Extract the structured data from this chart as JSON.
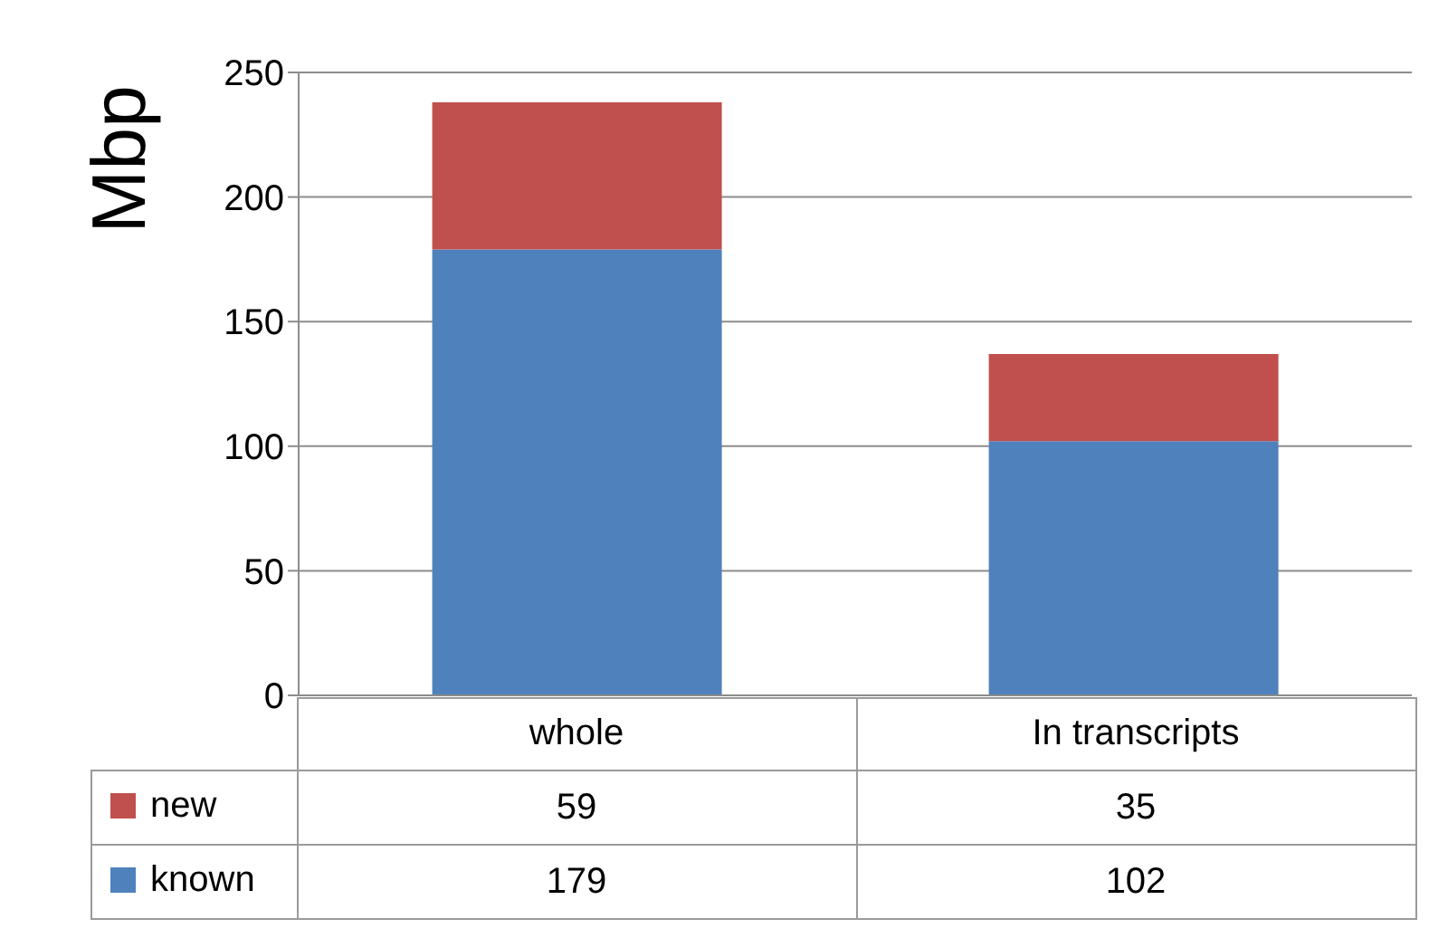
{
  "chart_data": {
    "type": "bar",
    "ylabel": "Mbp",
    "categories": [
      "whole",
      "In transcripts"
    ],
    "series": [
      {
        "name": "known",
        "color": "#4f81bd",
        "values": [
          179,
          102
        ]
      },
      {
        "name": "new",
        "color": "#c0504d",
        "values": [
          59,
          35
        ]
      }
    ],
    "stacked": true,
    "ylim": [
      0,
      250
    ],
    "yticks": [
      0,
      50,
      100,
      150,
      200,
      250
    ],
    "grid": "y",
    "legend": "bottom",
    "data_labels": true
  }
}
